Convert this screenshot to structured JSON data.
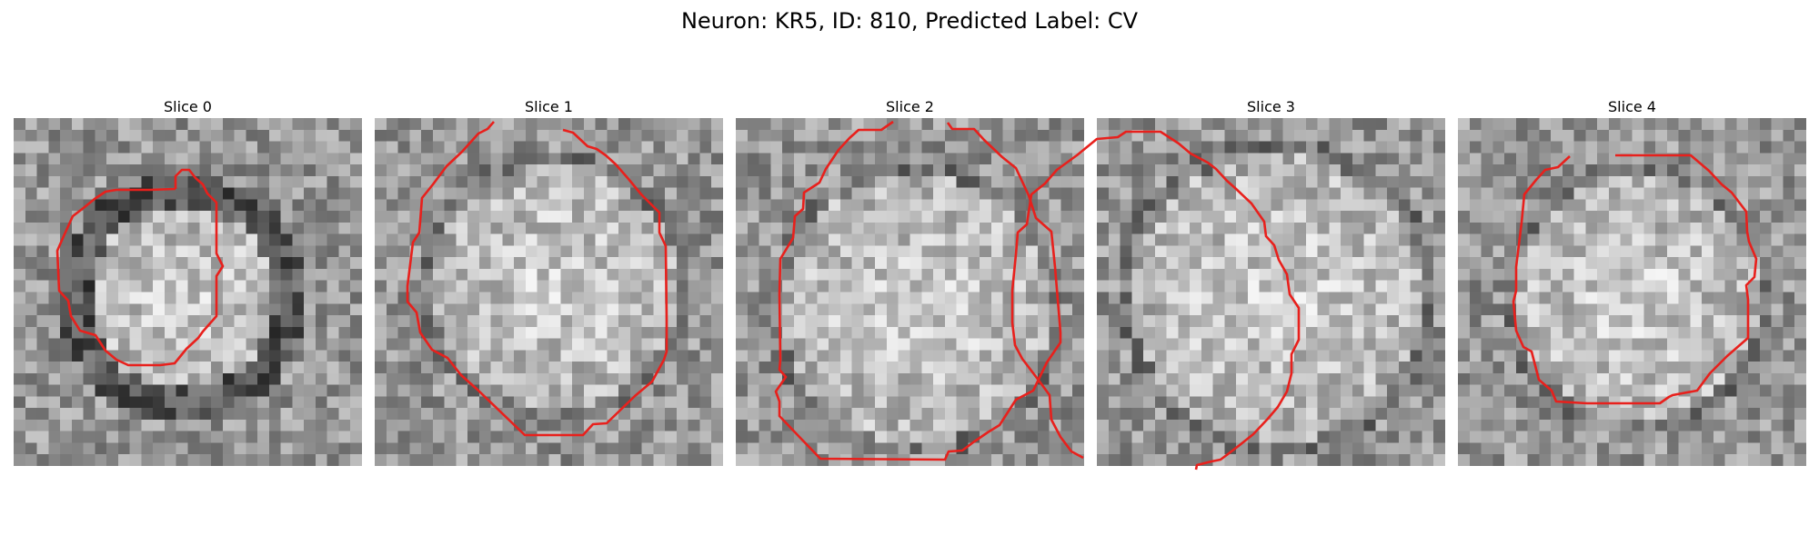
{
  "figure": {
    "title": "Neuron: KR5, ID: 810, Predicted Label: CV",
    "contour_color": "#e8201c",
    "colormap": "gray"
  },
  "panels": [
    {
      "title": "Slice 0"
    },
    {
      "title": "Slice 1"
    },
    {
      "title": "Slice 2"
    },
    {
      "title": "Slice 3"
    },
    {
      "title": "Slice 4"
    }
  ]
}
